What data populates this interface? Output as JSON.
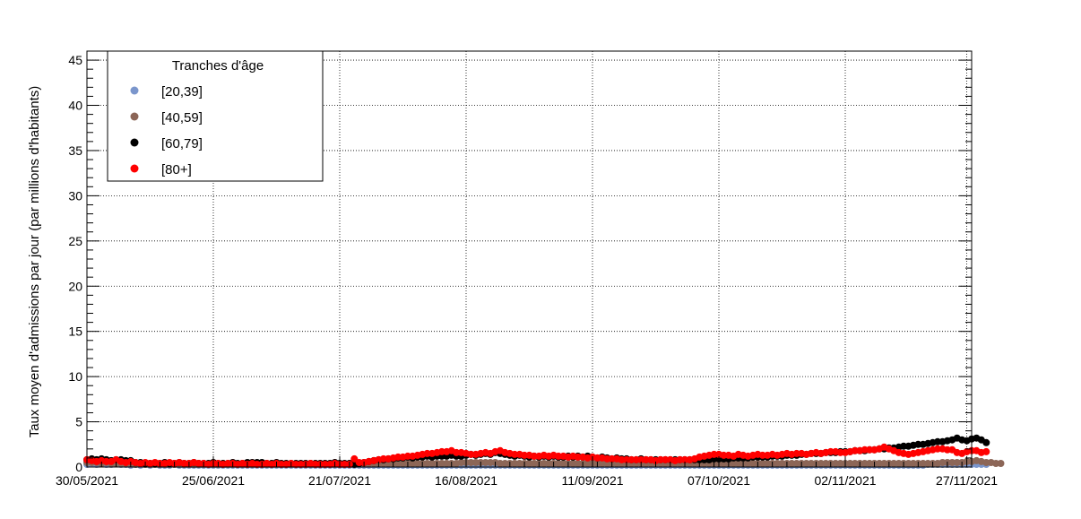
{
  "chart_data": {
    "type": "scatter",
    "title": "",
    "xlabel": "",
    "ylabel": "Taux moyen d'admissions par jour (par millions d'habitants)",
    "x_start": "30/05/2021",
    "x_end": "27/11/2021",
    "xlim": [
      "30/05/2021",
      "28/11/2021"
    ],
    "ylim": [
      0,
      46
    ],
    "y_ticks": [
      0,
      5,
      10,
      15,
      20,
      25,
      30,
      35,
      40,
      45
    ],
    "x_ticks": [
      "30/05/2021",
      "25/06/2021",
      "21/07/2021",
      "16/08/2021",
      "11/09/2021",
      "07/10/2021",
      "02/11/2021",
      "27/11/2021"
    ],
    "grid": true,
    "legend": {
      "title": "Tranches d'âge",
      "placement": "top-left"
    },
    "series": [
      {
        "name": "[20,39]",
        "color": "#7b96cc",
        "values": [
          0.3,
          0.4,
          0.3,
          0.4,
          0.3,
          0.3,
          0.4,
          0.3,
          0.3,
          0.2,
          0.3,
          0.2,
          0.3,
          0.2,
          0.3,
          0.2,
          0.2,
          0.2,
          0.3,
          0.2,
          0.2,
          0.2,
          0.2,
          0.2,
          0.2,
          0.2,
          0.2,
          0.2,
          0.2,
          0.2,
          0.2,
          0.2,
          0.2,
          0.2,
          0.2,
          0.2,
          0.2,
          0.2,
          0.2,
          0.2,
          0.2,
          0.2,
          0.2,
          0.2,
          0.2,
          0.2,
          0.2,
          0.2,
          0.2,
          0.2,
          0.2,
          0.2,
          0.2,
          0.2,
          0.2,
          0.2,
          0.2,
          0.2,
          0.2,
          0.2,
          0.2,
          0.2,
          0.2,
          0.2,
          0.2,
          0.2,
          0.2,
          0.2,
          0.2,
          0.2,
          0.2,
          0.2,
          0.2,
          0.2,
          0.2,
          0.2,
          0.2,
          0.2,
          0.2,
          0.2,
          0.2,
          0.2,
          0.2,
          0.2,
          0.2,
          0.2,
          0.2,
          0.2,
          0.2,
          0.2,
          0.2,
          0.2,
          0.2,
          0.2,
          0.2,
          0.2,
          0.2,
          0.2,
          0.2,
          0.2,
          0.2,
          0.2,
          0.2,
          0.2,
          0.2,
          0.2,
          0.2,
          0.2,
          0.2,
          0.2,
          0.2,
          0.2,
          0.2,
          0.2,
          0.2,
          0.2,
          0.2,
          0.2,
          0.2,
          0.2,
          0.2,
          0.2,
          0.2,
          0.2,
          0.2,
          0.2,
          0.2,
          0.2,
          0.2,
          0.2,
          0.2,
          0.2,
          0.2,
          0.2,
          0.2,
          0.2,
          0.2,
          0.2,
          0.2,
          0.2,
          0.2,
          0.2,
          0.2,
          0.2,
          0.2,
          0.2,
          0.2,
          0.2,
          0.2,
          0.2,
          0.2,
          0.2,
          0.2,
          0.2,
          0.2,
          0.2,
          0.2,
          0.2,
          0.2,
          0.2,
          0.2,
          0.2,
          0.2,
          0.2,
          0.2,
          0.2,
          0.2,
          0.2,
          0.2,
          0.2,
          0.2,
          0.2,
          0.2,
          0.3,
          0.3,
          0.3,
          0.3,
          0.3,
          0.3,
          0.3,
          0.3,
          0.3,
          0.3,
          0.3,
          0.3,
          0.3
        ]
      },
      {
        "name": "[40,59]",
        "color": "#8c6657",
        "values": [
          0.5,
          0.5,
          0.5,
          0.4,
          0.5,
          0.4,
          0.4,
          0.4,
          0.4,
          0.4,
          0.3,
          0.4,
          0.3,
          0.3,
          0.3,
          0.3,
          0.3,
          0.3,
          0.3,
          0.3,
          0.3,
          0.3,
          0.3,
          0.3,
          0.3,
          0.3,
          0.3,
          0.3,
          0.3,
          0.3,
          0.3,
          0.3,
          0.3,
          0.3,
          0.3,
          0.3,
          0.3,
          0.3,
          0.3,
          0.3,
          0.3,
          0.3,
          0.3,
          0.3,
          0.3,
          0.3,
          0.3,
          0.3,
          0.3,
          0.3,
          0.3,
          0.3,
          0.3,
          0.3,
          0.3,
          0.3,
          0.4,
          0.4,
          0.4,
          0.4,
          0.4,
          0.4,
          0.4,
          0.4,
          0.4,
          0.4,
          0.4,
          0.4,
          0.4,
          0.4,
          0.4,
          0.4,
          0.4,
          0.4,
          0.4,
          0.4,
          0.4,
          0.5,
          0.5,
          0.5,
          0.5,
          0.5,
          0.5,
          0.5,
          0.5,
          0.4,
          0.4,
          0.4,
          0.4,
          0.4,
          0.4,
          0.4,
          0.4,
          0.4,
          0.4,
          0.4,
          0.4,
          0.4,
          0.4,
          0.4,
          0.4,
          0.4,
          0.4,
          0.4,
          0.4,
          0.4,
          0.4,
          0.4,
          0.4,
          0.4,
          0.4,
          0.4,
          0.4,
          0.4,
          0.4,
          0.4,
          0.4,
          0.4,
          0.4,
          0.4,
          0.4,
          0.4,
          0.4,
          0.4,
          0.4,
          0.4,
          0.4,
          0.4,
          0.4,
          0.4,
          0.4,
          0.4,
          0.4,
          0.4,
          0.4,
          0.4,
          0.4,
          0.4,
          0.4,
          0.4,
          0.4,
          0.4,
          0.4,
          0.4,
          0.4,
          0.4,
          0.4,
          0.4,
          0.4,
          0.4,
          0.4,
          0.4,
          0.4,
          0.4,
          0.4,
          0.4,
          0.4,
          0.4,
          0.4,
          0.4,
          0.4,
          0.4,
          0.4,
          0.4,
          0.4,
          0.4,
          0.4,
          0.4,
          0.4,
          0.4,
          0.4,
          0.4,
          0.4,
          0.4,
          0.4,
          0.4,
          0.5,
          0.5,
          0.5,
          0.5,
          0.5,
          0.6,
          0.6,
          0.7,
          0.6,
          0.5,
          0.5,
          0.4,
          0.4
        ]
      },
      {
        "name": "[60,79]",
        "color": "#000000",
        "values": [
          0.8,
          0.9,
          0.8,
          0.9,
          0.8,
          0.7,
          0.8,
          0.8,
          0.7,
          0.7,
          0.5,
          0.5,
          0.4,
          0.4,
          0.4,
          0.4,
          0.5,
          0.4,
          0.4,
          0.5,
          0.4,
          0.4,
          0.5,
          0.4,
          0.4,
          0.4,
          0.5,
          0.4,
          0.4,
          0.4,
          0.5,
          0.4,
          0.4,
          0.5,
          0.5,
          0.5,
          0.5,
          0.4,
          0.4,
          0.5,
          0.4,
          0.4,
          0.4,
          0.4,
          0.4,
          0.4,
          0.4,
          0.4,
          0.4,
          0.4,
          0.4,
          0.5,
          0.4,
          0.4,
          0.4,
          0.3,
          0.4,
          0.5,
          0.6,
          0.7,
          0.8,
          0.8,
          0.9,
          0.9,
          1.0,
          1.0,
          1.1,
          1.0,
          1.1,
          1.1,
          1.2,
          1.1,
          1.2,
          1.2,
          1.2,
          1.3,
          1.2,
          1.2,
          1.3,
          1.4,
          1.3,
          1.4,
          1.5,
          1.4,
          1.6,
          1.5,
          1.4,
          1.3,
          1.2,
          1.3,
          1.2,
          1.1,
          1.2,
          1.1,
          1.2,
          1.1,
          1.2,
          1.1,
          1.1,
          1.2,
          1.1,
          1.2,
          1.1,
          1.2,
          1.1,
          1.0,
          1.1,
          1.0,
          0.9,
          1.0,
          0.9,
          0.9,
          0.8,
          0.8,
          0.9,
          0.8,
          0.8,
          0.8,
          0.8,
          0.8,
          0.8,
          0.8,
          0.8,
          0.8,
          0.8,
          0.8,
          0.8,
          0.8,
          0.8,
          0.9,
          0.9,
          0.9,
          0.9,
          1.0,
          1.0,
          1.0,
          1.0,
          1.1,
          1.1,
          1.1,
          1.1,
          1.2,
          1.2,
          1.2,
          1.3,
          1.3,
          1.3,
          1.4,
          1.4,
          1.5,
          1.5,
          1.5,
          1.6,
          1.6,
          1.6,
          1.7,
          1.7,
          1.7,
          1.8,
          1.8,
          1.8,
          1.9,
          1.9,
          2.0,
          2.0,
          2.1,
          2.1,
          2.2,
          2.3,
          2.3,
          2.4,
          2.5,
          2.5,
          2.6,
          2.7,
          2.8,
          2.8,
          2.9,
          3.0,
          3.2,
          3.0,
          2.9,
          3.1,
          3.2,
          3.0,
          2.7
        ]
      },
      {
        "name": "[80+]",
        "color": "#ff0000",
        "values": [
          0.8,
          0.7,
          0.6,
          0.7,
          0.6,
          0.6,
          0.8,
          0.6,
          0.5,
          0.6,
          0.5,
          0.4,
          0.5,
          0.4,
          0.5,
          0.4,
          0.4,
          0.5,
          0.4,
          0.5,
          0.4,
          0.4,
          0.5,
          0.4,
          0.4,
          0.3,
          0.4,
          0.4,
          0.3,
          0.4,
          0.4,
          0.3,
          0.4,
          0.3,
          0.4,
          0.3,
          0.3,
          0.4,
          0.3,
          0.4,
          0.3,
          0.3,
          0.4,
          0.3,
          0.3,
          0.3,
          0.4,
          0.3,
          0.3,
          0.3,
          0.3,
          0.4,
          0.3,
          0.3,
          0.3,
          0.9,
          0.5,
          0.5,
          0.6,
          0.7,
          0.8,
          0.9,
          0.9,
          1.0,
          1.1,
          1.1,
          1.2,
          1.2,
          1.3,
          1.4,
          1.5,
          1.5,
          1.6,
          1.7,
          1.7,
          1.8,
          1.6,
          1.6,
          1.5,
          1.4,
          1.4,
          1.5,
          1.6,
          1.5,
          1.7,
          1.8,
          1.6,
          1.5,
          1.4,
          1.4,
          1.3,
          1.3,
          1.2,
          1.2,
          1.3,
          1.2,
          1.3,
          1.2,
          1.2,
          1.1,
          1.2,
          1.1,
          1.1,
          1.0,
          1.1,
          1.0,
          1.0,
          0.9,
          0.9,
          0.9,
          0.8,
          0.8,
          0.8,
          0.8,
          0.8,
          0.8,
          0.8,
          0.7,
          0.8,
          0.8,
          0.8,
          0.7,
          0.8,
          0.8,
          0.8,
          0.9,
          1.1,
          1.2,
          1.3,
          1.4,
          1.4,
          1.3,
          1.3,
          1.2,
          1.4,
          1.3,
          1.2,
          1.3,
          1.4,
          1.3,
          1.3,
          1.4,
          1.3,
          1.4,
          1.5,
          1.4,
          1.5,
          1.5,
          1.4,
          1.5,
          1.6,
          1.5,
          1.6,
          1.7,
          1.7,
          1.6,
          1.6,
          1.7,
          1.8,
          1.8,
          1.9,
          1.9,
          1.9,
          2.0,
          2.2,
          2.0,
          1.8,
          1.6,
          1.5,
          1.4,
          1.5,
          1.6,
          1.7,
          1.8,
          1.9,
          2.0,
          2.0,
          1.9,
          1.9,
          1.6,
          1.5,
          1.7,
          1.8,
          1.8,
          1.6,
          1.7
        ]
      }
    ]
  }
}
